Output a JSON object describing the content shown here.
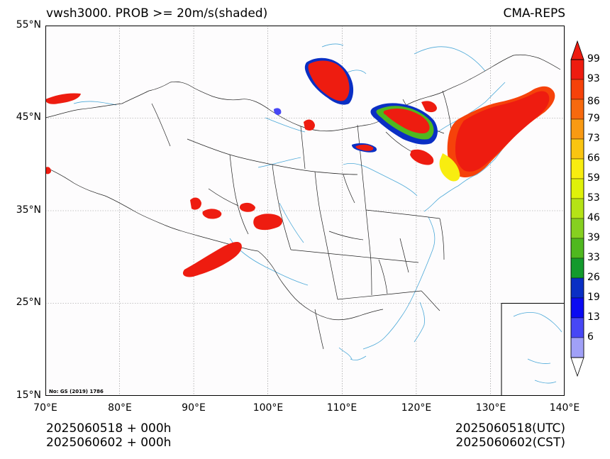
{
  "title": {
    "left": "vwsh3000. PROB >= 20m/s(shaded)",
    "right": "CMA-REPS"
  },
  "axes": {
    "lat_labels": [
      "55°N",
      "45°N",
      "35°N",
      "25°N",
      "15°N"
    ],
    "lon_labels": [
      "70°E",
      "80°E",
      "90°E",
      "100°E",
      "110°E",
      "120°E",
      "130°E",
      "140°E"
    ],
    "lat_range": [
      15,
      55
    ],
    "lon_range": [
      70,
      140
    ],
    "grid": true
  },
  "credit": "No: GS (2019) 1786",
  "footer": {
    "left_line1": "2025060518  +  000h",
    "left_line2": "2025060602  +  000h",
    "right_line1": "2025060518(UTC)",
    "right_line2": "2025060602(CST)"
  },
  "colorbar": {
    "levels": [
      "99",
      "93",
      "86",
      "79",
      "73",
      "66",
      "59",
      "53",
      "46",
      "39",
      "33",
      "26",
      "19",
      "13",
      "6"
    ],
    "colors": [
      "#ee1c10",
      "#f6420a",
      "#f7690e",
      "#f99a12",
      "#fac511",
      "#f8ed10",
      "#dff10a",
      "#b5e316",
      "#86d020",
      "#4fb81f",
      "#139a2d",
      "#0a2fc4",
      "#0b0bf2",
      "#4747f5",
      "#a0a0f7"
    ]
  },
  "colors": {
    "coast": "#4aa8d8",
    "border": "#222222",
    "grid": "#888888"
  }
}
